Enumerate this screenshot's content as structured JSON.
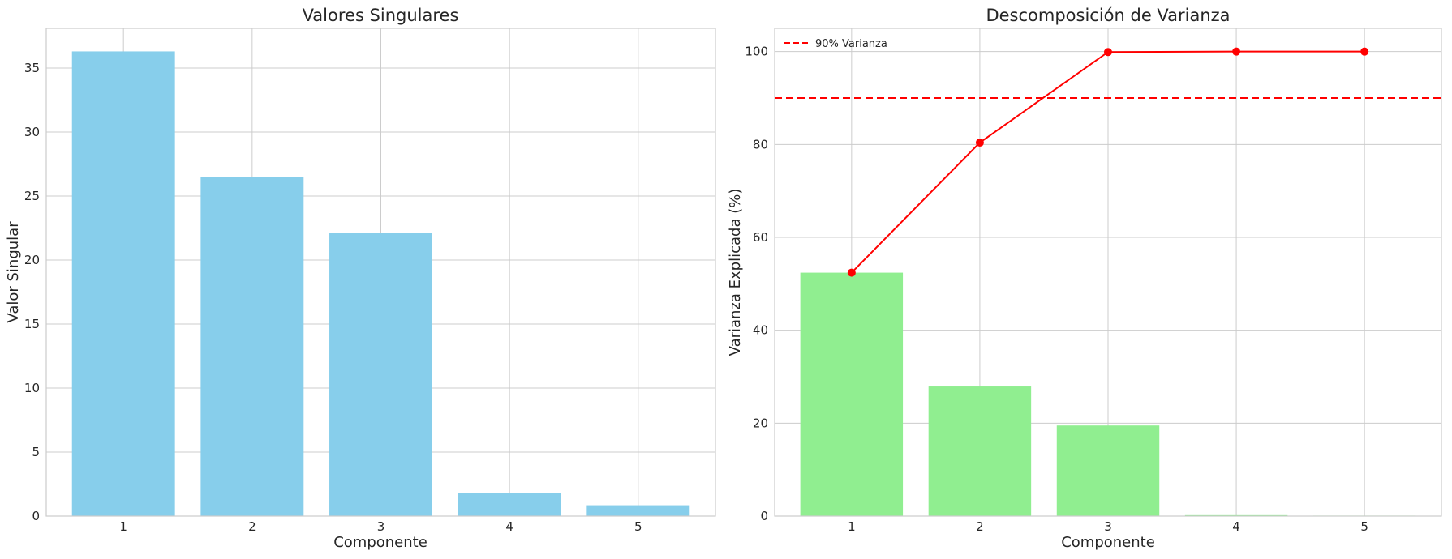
{
  "chart_data": [
    {
      "type": "bar",
      "title": "Valores Singulares",
      "xlabel": "Componente",
      "ylabel": "Valor Singular",
      "categories": [
        "1",
        "2",
        "3",
        "4",
        "5"
      ],
      "values": [
        36.3,
        26.5,
        22.1,
        1.8,
        0.85
      ],
      "ylim": [
        0,
        38.1
      ],
      "yticks": [
        0,
        5,
        10,
        15,
        20,
        25,
        30,
        35
      ],
      "grid": true,
      "color": "#87CEEB"
    },
    {
      "type": "bar+line",
      "title": "Descomposición de Varianza",
      "xlabel": "Componente",
      "ylabel": "Varianza Explicada (%)",
      "categories": [
        "1",
        "2",
        "3",
        "4",
        "5"
      ],
      "values": [
        52.4,
        27.9,
        19.5,
        0.2,
        0.1
      ],
      "cumulative": [
        52.4,
        80.4,
        99.9,
        100.0,
        100.0
      ],
      "threshold": {
        "value": 90,
        "label": "90% Varianza"
      },
      "legend_position": "top-left",
      "ylim": [
        0,
        105
      ],
      "yticks": [
        0,
        20,
        40,
        60,
        80,
        100
      ],
      "grid": true,
      "bar_color": "#90EE90",
      "line_color": "#FF0000"
    }
  ]
}
